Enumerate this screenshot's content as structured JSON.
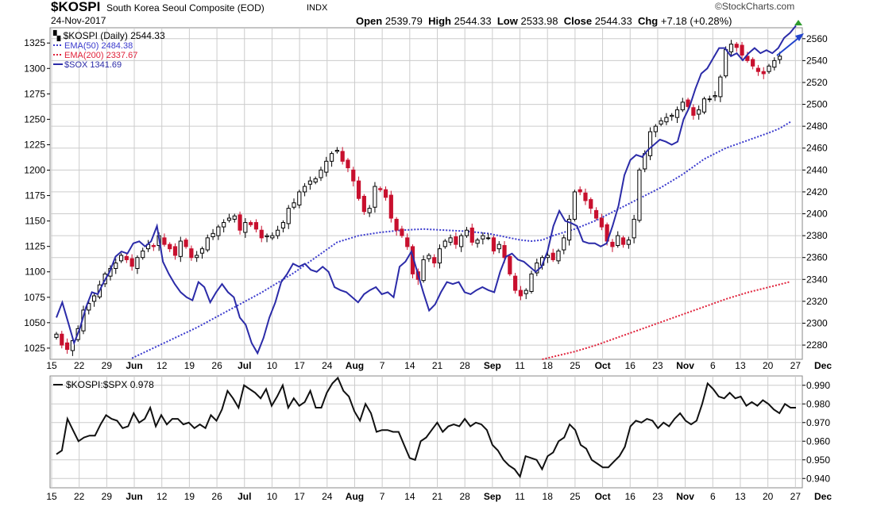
{
  "header": {
    "symbol": "$KOSPI",
    "name": "South Korea Seoul Composite (EOD)",
    "exchange": "INDX",
    "date": "24-Nov-2017",
    "open_label": "Open",
    "open": "2539.79",
    "high_label": "High",
    "high": "2544.33",
    "low_label": "Low",
    "low": "2533.98",
    "close_label": "Close",
    "close": "2544.33",
    "chg_label": "Chg",
    "chg": "+7.18 (+0.28%)",
    "brand": "©StockCharts.com"
  },
  "colors": {
    "up": "#000000",
    "down": "#c8102e",
    "ema50": "#3a3acd",
    "ema200": "#e0213a",
    "sox": "#2b2ba8",
    "ratio": "#111111",
    "grid": "#cccccc",
    "arrow": "#2244cc",
    "chg_arrow": "#2e9b2e"
  },
  "chart_data": [
    {
      "type": "line",
      "title": "$KOSPI (Daily) 2544.33",
      "legend": [
        {
          "label": "$KOSPI (Daily) 2544.33",
          "style": "candlestick"
        },
        {
          "label": "EMA(50) 2484.38",
          "style": "dotted",
          "color": "#3a3acd"
        },
        {
          "label": "EMA(200) 2337.67",
          "style": "dotted",
          "color": "#e0213a"
        },
        {
          "label": "$SOX 1341.69",
          "style": "solid",
          "color": "#2b2ba8"
        }
      ],
      "legend_position": "top-left",
      "x_tick_labels": [
        "15",
        "22",
        "29",
        "Jun",
        "12",
        "19",
        "26",
        "Jul",
        "10",
        "17",
        "24",
        "Aug",
        "7",
        "14",
        "21",
        "28",
        "Sep",
        "11",
        "18",
        "25",
        "Oct",
        "16",
        "23",
        "Nov",
        "6",
        "13",
        "20",
        "27",
        "Dec"
      ],
      "x_tick_bold": [
        "Jun",
        "Jul",
        "Aug",
        "Sep",
        "Oct",
        "Nov",
        "Dec"
      ],
      "right_axis": {
        "label": "$KOSPI",
        "ticks": [
          2280,
          2300,
          2320,
          2340,
          2360,
          2380,
          2400,
          2420,
          2440,
          2460,
          2480,
          2500,
          2520,
          2540,
          2560
        ],
        "range": [
          2267,
          2570
        ]
      },
      "left_axis": {
        "label": "$SOX",
        "ticks": [
          1025,
          1050,
          1075,
          1100,
          1125,
          1150,
          1175,
          1200,
          1225,
          1250,
          1275,
          1300,
          1325
        ],
        "range": [
          1014,
          1340
        ]
      },
      "grid": true,
      "series": [
        {
          "name": "$SOX",
          "axis": "left",
          "values": [
            1055,
            1070,
            1050,
            1030,
            1045,
            1065,
            1080,
            1078,
            1090,
            1100,
            1115,
            1120,
            1118,
            1128,
            1130,
            1125,
            1130,
            1145,
            1110,
            1098,
            1088,
            1080,
            1075,
            1072,
            1090,
            1085,
            1070,
            1080,
            1088,
            1080,
            1075,
            1055,
            1048,
            1030,
            1020,
            1035,
            1055,
            1070,
            1090,
            1098,
            1108,
            1105,
            1108,
            1102,
            1100,
            1105,
            1100,
            1085,
            1082,
            1080,
            1075,
            1070,
            1078,
            1082,
            1085,
            1078,
            1080,
            1075,
            1105,
            1110,
            1120,
            1100,
            1080,
            1062,
            1068,
            1080,
            1090,
            1088,
            1090,
            1080,
            1078,
            1082,
            1085,
            1082,
            1080,
            1100,
            1115,
            1118,
            1112,
            1110,
            1105,
            1100,
            1105,
            1120,
            1145,
            1160,
            1150,
            1148,
            1145,
            1130,
            1128,
            1128,
            1125,
            1128,
            1145,
            1165,
            1195,
            1210,
            1215,
            1213,
            1220,
            1225,
            1230,
            1228,
            1225,
            1228,
            1250,
            1262,
            1280,
            1295,
            1300,
            1310,
            1320,
            1320,
            1312,
            1315,
            1308,
            1315,
            1320,
            1315,
            1318,
            1315,
            1320,
            1330,
            1335,
            1342
          ]
        },
        {
          "name": "EMA(50)",
          "axis": "right",
          "values": [
            [
              14,
              2268
            ],
            [
              20,
              2282
            ],
            [
              26,
              2296
            ],
            [
              32,
              2312
            ],
            [
              38,
              2328
            ],
            [
              44,
              2346
            ],
            [
              48,
              2360
            ],
            [
              52,
              2374
            ],
            [
              56,
              2380
            ],
            [
              60,
              2383
            ],
            [
              64,
              2385
            ],
            [
              68,
              2386
            ],
            [
              72,
              2385
            ],
            [
              76,
              2384
            ],
            [
              80,
              2382
            ],
            [
              84,
              2378
            ],
            [
              86,
              2376
            ],
            [
              88,
              2375
            ],
            [
              90,
              2376
            ],
            [
              92,
              2380
            ],
            [
              96,
              2386
            ],
            [
              100,
              2394
            ],
            [
              104,
              2404
            ],
            [
              108,
              2414
            ],
            [
              112,
              2424
            ],
            [
              116,
              2436
            ],
            [
              120,
              2450
            ],
            [
              124,
              2460
            ],
            [
              128,
              2467
            ],
            [
              132,
              2474
            ],
            [
              134,
              2478
            ],
            [
              136,
              2484
            ]
          ]
        },
        {
          "name": "EMA(200)",
          "axis": "right",
          "values": [
            [
              90,
              2267
            ],
            [
              96,
              2274
            ],
            [
              100,
              2280
            ],
            [
              104,
              2287
            ],
            [
              108,
              2294
            ],
            [
              112,
              2301
            ],
            [
              116,
              2308
            ],
            [
              120,
              2315
            ],
            [
              124,
              2322
            ],
            [
              128,
              2328
            ],
            [
              132,
              2333
            ],
            [
              136,
              2338
            ]
          ]
        },
        {
          "name": "$KOSPI",
          "axis": "right",
          "type": "candlestick",
          "closes": [
            2290,
            2280,
            2276,
            2284,
            2295,
            2312,
            2318,
            2325,
            2335,
            2345,
            2350,
            2355,
            2362,
            2358,
            2352,
            2360,
            2366,
            2372,
            2370,
            2380,
            2372,
            2368,
            2362,
            2375,
            2370,
            2360,
            2362,
            2368,
            2378,
            2382,
            2388,
            2392,
            2396,
            2398,
            2385,
            2392,
            2390,
            2386,
            2378,
            2380,
            2380,
            2385,
            2392,
            2405,
            2410,
            2420,
            2425,
            2430,
            2432,
            2440,
            2448,
            2455,
            2458,
            2448,
            2442,
            2430,
            2414,
            2402,
            2405,
            2425,
            2422,
            2415,
            2396,
            2385,
            2380,
            2370,
            2345,
            2340,
            2358,
            2362,
            2355,
            2368,
            2375,
            2378,
            2372,
            2380,
            2385,
            2374,
            2376,
            2380,
            2378,
            2366,
            2372,
            2360,
            2345,
            2330,
            2325,
            2330,
            2345,
            2355,
            2360,
            2362,
            2358,
            2366,
            2378,
            2395,
            2420,
            2420,
            2412,
            2405,
            2396,
            2388,
            2375,
            2370,
            2380,
            2372,
            2376,
            2395,
            2440,
            2455,
            2475,
            2480,
            2485,
            2488,
            2490,
            2495,
            2502,
            2498,
            2490,
            2495,
            2505,
            2505,
            2508,
            2525,
            2550,
            2555,
            2552,
            2545,
            2540,
            2535,
            2530,
            2528,
            2535,
            2540,
            2544
          ]
        }
      ]
    },
    {
      "type": "line",
      "title": "$KOSPI:$SPX 0.978",
      "legend": [
        {
          "label": "$KOSPI:$SPX 0.978",
          "style": "solid",
          "color": "#111111"
        }
      ],
      "legend_position": "top-left",
      "right_axis": {
        "ticks": [
          "0.940",
          "0.950",
          "0.960",
          "0.970",
          "0.980",
          "0.990"
        ],
        "range": [
          0.935,
          0.995
        ]
      },
      "grid": true,
      "series": [
        {
          "name": "$KOSPI:$SPX",
          "values": [
            0.953,
            0.955,
            0.972,
            0.966,
            0.96,
            0.962,
            0.963,
            0.963,
            0.969,
            0.974,
            0.972,
            0.971,
            0.967,
            0.968,
            0.975,
            0.97,
            0.972,
            0.978,
            0.968,
            0.974,
            0.969,
            0.972,
            0.972,
            0.969,
            0.97,
            0.967,
            0.969,
            0.967,
            0.974,
            0.971,
            0.977,
            0.987,
            0.983,
            0.978,
            0.99,
            0.988,
            0.986,
            0.983,
            0.988,
            0.979,
            0.984,
            0.99,
            0.978,
            0.983,
            0.979,
            0.981,
            0.987,
            0.978,
            0.978,
            0.986,
            0.991,
            0.994,
            0.987,
            0.984,
            0.976,
            0.971,
            0.98,
            0.975,
            0.965,
            0.966,
            0.966,
            0.965,
            0.965,
            0.958,
            0.951,
            0.95,
            0.96,
            0.962,
            0.966,
            0.97,
            0.965,
            0.968,
            0.969,
            0.968,
            0.972,
            0.968,
            0.97,
            0.969,
            0.966,
            0.958,
            0.955,
            0.95,
            0.947,
            0.945,
            0.941,
            0.952,
            0.951,
            0.95,
            0.945,
            0.952,
            0.954,
            0.96,
            0.962,
            0.969,
            0.966,
            0.958,
            0.956,
            0.95,
            0.948,
            0.946,
            0.946,
            0.949,
            0.952,
            0.957,
            0.968,
            0.971,
            0.97,
            0.972,
            0.971,
            0.967,
            0.97,
            0.968,
            0.972,
            0.975,
            0.971,
            0.969,
            0.971,
            0.98,
            0.991,
            0.988,
            0.984,
            0.983,
            0.986,
            0.983,
            0.984,
            0.979,
            0.981,
            0.979,
            0.982,
            0.98,
            0.977,
            0.975,
            0.98,
            0.978,
            0.978
          ]
        }
      ]
    }
  ]
}
